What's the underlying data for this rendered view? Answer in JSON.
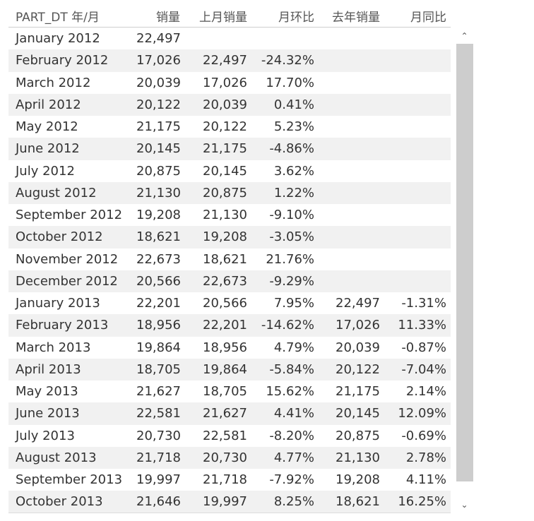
{
  "table": {
    "headers": [
      "PART_DT 年/月",
      "销量",
      "上月销量",
      "月环比",
      "去年销量",
      "月同比"
    ],
    "rows": [
      [
        "January 2012",
        "22,497",
        "",
        "",
        "",
        ""
      ],
      [
        "February 2012",
        "17,026",
        "22,497",
        "-24.32%",
        "",
        ""
      ],
      [
        "March 2012",
        "20,039",
        "17,026",
        "17.70%",
        "",
        ""
      ],
      [
        "April 2012",
        "20,122",
        "20,039",
        "0.41%",
        "",
        ""
      ],
      [
        "May 2012",
        "21,175",
        "20,122",
        "5.23%",
        "",
        ""
      ],
      [
        "June 2012",
        "20,145",
        "21,175",
        "-4.86%",
        "",
        ""
      ],
      [
        "July 2012",
        "20,875",
        "20,145",
        "3.62%",
        "",
        ""
      ],
      [
        "August 2012",
        "21,130",
        "20,875",
        "1.22%",
        "",
        ""
      ],
      [
        "September 2012",
        "19,208",
        "21,130",
        "-9.10%",
        "",
        ""
      ],
      [
        "October 2012",
        "18,621",
        "19,208",
        "-3.05%",
        "",
        ""
      ],
      [
        "November 2012",
        "22,673",
        "18,621",
        "21.76%",
        "",
        ""
      ],
      [
        "December 2012",
        "20,566",
        "22,673",
        "-9.29%",
        "",
        ""
      ],
      [
        "January 2013",
        "22,201",
        "20,566",
        "7.95%",
        "22,497",
        "-1.31%"
      ],
      [
        "February 2013",
        "18,956",
        "22,201",
        "-14.62%",
        "17,026",
        "11.33%"
      ],
      [
        "March 2013",
        "19,864",
        "18,956",
        "4.79%",
        "20,039",
        "-0.87%"
      ],
      [
        "April 2013",
        "18,705",
        "19,864",
        "-5.84%",
        "20,122",
        "-7.04%"
      ],
      [
        "May 2013",
        "21,627",
        "18,705",
        "15.62%",
        "21,175",
        "2.14%"
      ],
      [
        "June 2013",
        "22,581",
        "21,627",
        "4.41%",
        "20,145",
        "12.09%"
      ],
      [
        "July 2013",
        "20,730",
        "22,581",
        "-8.20%",
        "20,875",
        "-0.69%"
      ],
      [
        "August 2013",
        "21,718",
        "20,730",
        "4.77%",
        "21,130",
        "2.78%"
      ],
      [
        "September 2013",
        "19,997",
        "21,718",
        "-7.92%",
        "19,208",
        "4.11%"
      ],
      [
        "October 2013",
        "21,646",
        "19,997",
        "8.25%",
        "18,621",
        "16.25%"
      ]
    ]
  },
  "scrollbar": {
    "up_icon": "chevron-up-icon",
    "down_icon": "chevron-down-icon",
    "up_glyph": "⌃",
    "down_glyph": "⌄"
  },
  "colors": {
    "alt_row": "#f1f1f1",
    "scroll_thumb": "#cdcdcd",
    "text": "#333333"
  }
}
